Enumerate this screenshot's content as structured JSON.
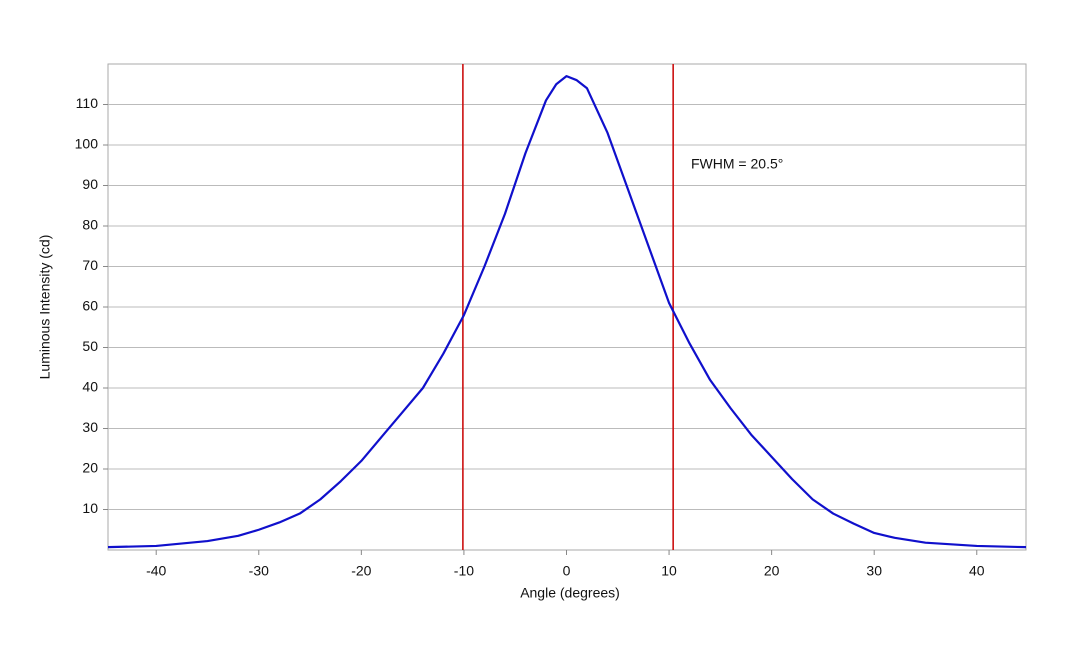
{
  "chart_data": {
    "type": "line",
    "x_label": "Angle (degrees)",
    "y_label": "Luminous Intensity (cd)",
    "annotation": "FWHM = 20.5°",
    "x": [
      -44.7,
      -40,
      -35,
      -32,
      -30,
      -28,
      -26,
      -24,
      -22,
      -20,
      -18,
      -16,
      -14,
      -12,
      -10,
      -8,
      -6,
      -4,
      -2,
      -1,
      0,
      1,
      2,
      4,
      6,
      8,
      10,
      12,
      14,
      16,
      18,
      20,
      22,
      24,
      26,
      28,
      30,
      32,
      35,
      40,
      44.8
    ],
    "series": [
      {
        "color": "#1010cc",
        "values": [
          0.7,
          1.0,
          2.2,
          3.5,
          5,
          6.8,
          9,
          12.5,
          17,
          22,
          28,
          34,
          40,
          48.5,
          58,
          70,
          83,
          98,
          111,
          115,
          117,
          116,
          114,
          103,
          89,
          75,
          61,
          51,
          42,
          35,
          28.5,
          23,
          17.5,
          12.5,
          9,
          6.5,
          4.2,
          3,
          1.8,
          1.0,
          0.7
        ]
      }
    ],
    "vlines": [
      -10.1,
      10.4
    ],
    "vline_color": "#cc1111",
    "xlim": [
      -44.7,
      44.8
    ],
    "ylim": [
      0,
      120
    ],
    "xticks": [
      -40,
      -30,
      -20,
      -10,
      0,
      10,
      20,
      30,
      40
    ],
    "yticks": [
      10,
      20,
      30,
      40,
      50,
      60,
      70,
      80,
      90,
      100,
      110
    ],
    "grid": true
  }
}
